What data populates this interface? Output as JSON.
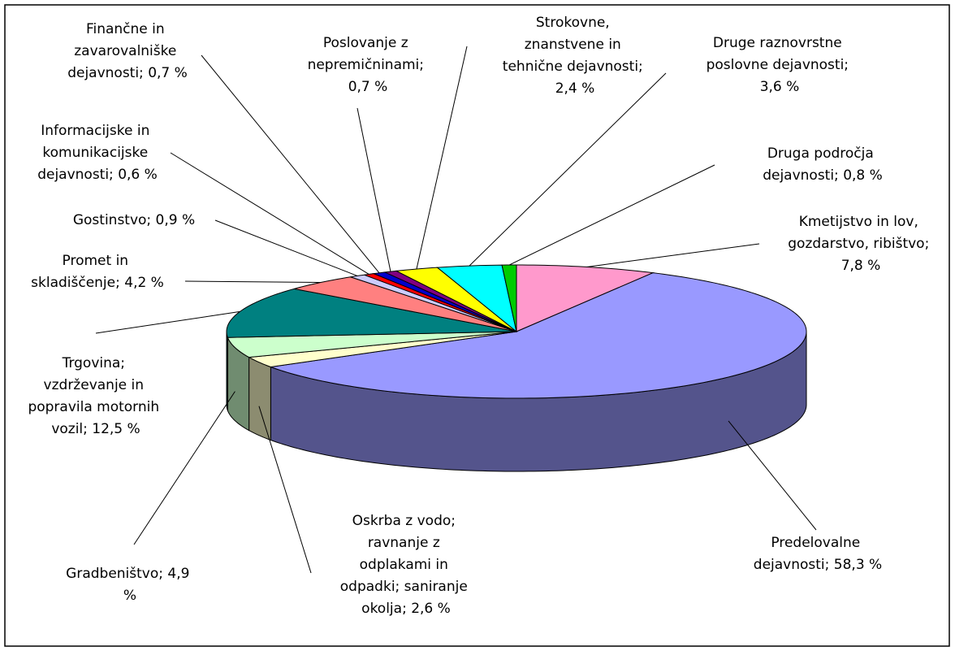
{
  "chart_data": {
    "type": "pie",
    "three_d": true,
    "values": [
      7.8,
      58.3,
      2.6,
      4.9,
      12.5,
      4.2,
      0.9,
      0.6,
      0.7,
      0.7,
      2.4,
      3.6,
      0.8
    ],
    "value_labels": [
      "Kmetijstvo in lov, gozdarstvo, ribištvo; 7,8 %",
      "Predelovalne dejavnosti; 58,3 %",
      "Oskrba z vodo; ravnanje z odplakami in odpadki; saniranje okolja; 2,6 %",
      "Gradbeništvo; 4,9 %",
      "Trgovina; vzdrževanje in popravila motornih vozil; 12,5 %",
      "Promet in skladiščenje; 4,2 %",
      "Gostinstvo; 0,9 %",
      "Informacijske in komunikacijske dejavnosti; 0,6 %",
      "Finančne in zavarovalniške dejavnosti; 0,7 %",
      "Poslovanje z nepremičninami; 0,7 %",
      "Strokovne, znanstvene in tehnične dejavnosti; 2,4 %",
      "Druge raznovrstne poslovne dejavnosti; 3,6 %",
      "Druga področja dejavnosti; 0,8 %"
    ],
    "colors": [
      "#ff99cc",
      "#9999ff",
      "#ffffcc",
      "#ccffcc",
      "#008080",
      "#ff8080",
      "#ccccff",
      "#ff0000",
      "#0000cc",
      "#800080",
      "#ffff00",
      "#00ffff",
      "#00cc00"
    ]
  }
}
